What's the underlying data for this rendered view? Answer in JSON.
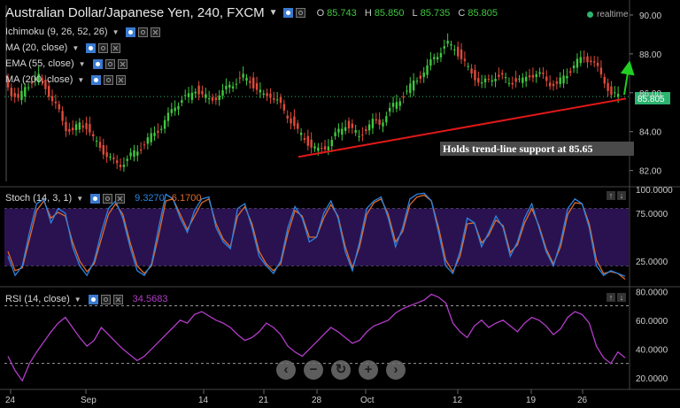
{
  "title": {
    "symbol": "Australian Dollar/Japanese Yen, 240, FXCM",
    "open_label": "O",
    "open": "85.743",
    "high_label": "H",
    "high": "85.850",
    "low_label": "L",
    "low": "85.735",
    "close_label": "C",
    "close": "85.805"
  },
  "realtime": "realtime",
  "indicators": {
    "ichimoku": "Ichimoku (9, 26, 52, 26)",
    "ma20": "MA (20, close)",
    "ema55": "EMA (55, close)",
    "ma200": "MA (200, close)"
  },
  "annotation": "Holds trend-line support at 85.65",
  "price_badge": "85.805",
  "stoch": {
    "label": "Stoch (14, 3, 1)",
    "k": "9.3270",
    "d": "6.1700"
  },
  "rsi": {
    "label": "RSI (14, close)",
    "value": "34.5683"
  },
  "colors": {
    "up": "#3fc83f",
    "down": "#e04a3a",
    "trendline": "#e01818",
    "arrow": "#22d022",
    "stoch_k": "#2a84e0",
    "stoch_d": "#e06a2a",
    "stoch_bg": "#2a1250",
    "rsi": "#b23cc8",
    "badge": "#2db370",
    "annotation_bg": "#4a4a4a"
  },
  "chart_data": [
    {
      "type": "candlestick",
      "title": "Australian Dollar/Japanese Yen, 240, FXCM",
      "x": [
        "24",
        "Sep",
        "14",
        "21",
        "28",
        "Oct",
        "12",
        "19",
        "26"
      ],
      "ylim": [
        81.3,
        90.5
      ],
      "yticks": [
        "90.00",
        "88.00",
        "86.00",
        "84.00",
        "82.00"
      ],
      "ohlc": {
        "open": 85.743,
        "high": 85.85,
        "low": 85.735,
        "close": 85.805
      },
      "trendline": {
        "label": "Holds trend-line support at 85.65",
        "start": 82.7,
        "end": 85.7
      },
      "close_path": [
        86.8,
        86.0,
        85.6,
        86.3,
        86.6,
        86.8,
        86.3,
        85.6,
        85.0,
        84.2,
        84.0,
        84.4,
        84.3,
        83.6,
        83.2,
        82.8,
        82.4,
        82.3,
        82.6,
        82.9,
        83.2,
        83.6,
        83.9,
        84.3,
        84.8,
        85.3,
        85.7,
        85.8,
        86.2,
        85.9,
        85.6,
        85.8,
        86.0,
        86.4,
        86.6,
        86.8,
        86.6,
        86.2,
        85.8,
        85.9,
        85.6,
        85.0,
        84.6,
        84.0,
        83.6,
        83.3,
        83.0,
        83.2,
        83.6,
        84.0,
        84.4,
        84.1,
        83.7,
        84.2,
        84.5,
        84.4,
        84.9,
        85.3,
        85.7,
        86.1,
        86.5,
        86.9,
        87.3,
        87.8,
        88.2,
        88.5,
        88.3,
        87.8,
        87.2,
        86.8,
        86.5,
        86.6,
        86.9,
        86.8,
        86.5,
        86.7,
        86.6,
        86.9,
        87.0,
        86.8,
        86.5,
        86.4,
        86.8,
        87.2,
        87.6,
        87.8,
        87.7,
        87.2,
        86.6,
        85.9,
        85.8
      ]
    },
    {
      "type": "line",
      "title": "Stoch (14, 3, 1)",
      "ylim": [
        0,
        100
      ],
      "yticks": [
        "100.0000",
        "75.0000",
        "25.0000"
      ],
      "series": [
        {
          "name": "9.3270",
          "values": [
            30,
            10,
            20,
            55,
            85,
            90,
            65,
            80,
            75,
            40,
            20,
            10,
            25,
            55,
            80,
            88,
            70,
            40,
            15,
            10,
            22,
            60,
            95,
            90,
            70,
            55,
            78,
            90,
            92,
            60,
            45,
            38,
            80,
            85,
            60,
            30,
            20,
            12,
            25,
            60,
            82,
            70,
            45,
            50,
            75,
            88,
            70,
            35,
            15,
            45,
            80,
            88,
            92,
            70,
            40,
            60,
            90,
            95,
            96,
            88,
            55,
            20,
            12,
            35,
            70,
            65,
            40,
            55,
            72,
            60,
            30,
            45,
            70,
            85,
            60,
            35,
            20,
            45,
            80,
            90,
            85,
            60,
            20,
            10,
            15,
            12,
            9
          ]
        },
        {
          "name": "6.1700",
          "values": [
            35,
            15,
            18,
            48,
            78,
            88,
            70,
            76,
            72,
            45,
            25,
            14,
            22,
            48,
            74,
            85,
            74,
            45,
            20,
            12,
            20,
            52,
            88,
            90,
            74,
            58,
            72,
            86,
            90,
            64,
            48,
            40,
            72,
            82,
            64,
            35,
            22,
            15,
            22,
            54,
            78,
            72,
            50,
            50,
            70,
            84,
            72,
            40,
            18,
            40,
            74,
            86,
            90,
            74,
            45,
            56,
            84,
            92,
            94,
            88,
            60,
            26,
            14,
            30,
            64,
            65,
            44,
            52,
            68,
            62,
            34,
            42,
            65,
            80,
            62,
            38,
            22,
            40,
            74,
            86,
            85,
            64,
            26,
            12,
            14,
            12,
            6
          ]
        }
      ]
    },
    {
      "type": "line",
      "title": "RSI (14, close)",
      "ylim": [
        12,
        82
      ],
      "yticks": [
        "80.0000",
        "60.0000",
        "40.0000",
        "20.0000"
      ],
      "series": [
        {
          "name": "34.5683",
          "values": [
            35,
            25,
            18,
            30,
            38,
            45,
            52,
            58,
            62,
            55,
            48,
            42,
            46,
            55,
            50,
            45,
            40,
            36,
            32,
            35,
            40,
            45,
            50,
            55,
            60,
            58,
            64,
            66,
            63,
            60,
            58,
            55,
            50,
            46,
            48,
            52,
            58,
            55,
            50,
            42,
            38,
            35,
            40,
            45,
            50,
            55,
            52,
            48,
            44,
            46,
            52,
            56,
            58,
            60,
            65,
            68,
            70,
            72,
            74,
            78,
            76,
            72,
            58,
            52,
            48,
            56,
            60,
            55,
            58,
            60,
            56,
            52,
            58,
            62,
            60,
            56,
            50,
            54,
            62,
            66,
            64,
            58,
            42,
            34,
            30,
            38,
            34
          ]
        }
      ]
    }
  ]
}
